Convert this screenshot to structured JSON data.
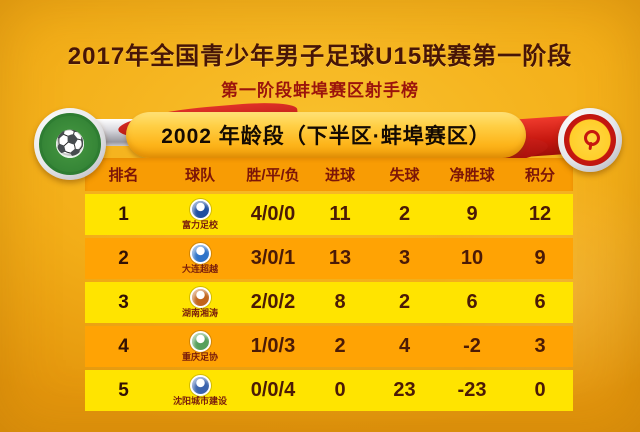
{
  "page": {
    "title": "2017年全国青少年男子足球U15联赛第一阶段",
    "subtitle": "第一阶段蚌埠赛区射手榜",
    "banner_label": "2002 年龄段（下半区·蚌埠赛区）"
  },
  "icons": {
    "left_badge": "football-association-badge",
    "left_badge_glyph": "⚽",
    "right_badge": "tournament-trophy-badge"
  },
  "colors": {
    "background": "#F3AE18",
    "row_yellow": "#FFE400",
    "row_orange": "#FFA304",
    "header_orange": "#F89C04",
    "banner_gold": "#FFC526",
    "ribbon_red": "#C6170F",
    "ribbon_silver": "#C9C9CF",
    "title_text": "#471507",
    "subtitle_text": "#9B140C"
  },
  "chart_data": {
    "type": "table",
    "title": "2017年全国青少年男子足球U15联赛第一阶段",
    "subtitle": "第一阶段蚌埠赛区射手榜",
    "group_label": "2002 年龄段（下半区·蚌埠赛区）",
    "columns": [
      "排名",
      "球队",
      "胜/平/负",
      "进球",
      "失球",
      "净胜球",
      "积分"
    ],
    "rows": [
      {
        "rank": "1",
        "team": "富力足校",
        "logo_color": "#1F4FA0",
        "wdl": "4/0/0",
        "goals_for": "11",
        "goals_against": "2",
        "goal_diff": "9",
        "points": "12"
      },
      {
        "rank": "2",
        "team": "大连超越",
        "logo_color": "#2F74C9",
        "wdl": "3/0/1",
        "goals_for": "13",
        "goals_against": "3",
        "goal_diff": "10",
        "points": "9"
      },
      {
        "rank": "3",
        "team": "湖南湘涛",
        "logo_color": "#C2651C",
        "wdl": "2/0/2",
        "goals_for": "8",
        "goals_against": "2",
        "goal_diff": "6",
        "points": "6"
      },
      {
        "rank": "4",
        "team": "重庆足协",
        "logo_color": "#57A05C",
        "wdl": "1/0/3",
        "goals_for": "2",
        "goals_against": "4",
        "goal_diff": "-2",
        "points": "3"
      },
      {
        "rank": "5",
        "team": "沈阳城市建设",
        "logo_color": "#3A63AD",
        "wdl": "0/0/4",
        "goals_for": "0",
        "goals_against": "23",
        "goal_diff": "-23",
        "points": "0"
      }
    ]
  }
}
